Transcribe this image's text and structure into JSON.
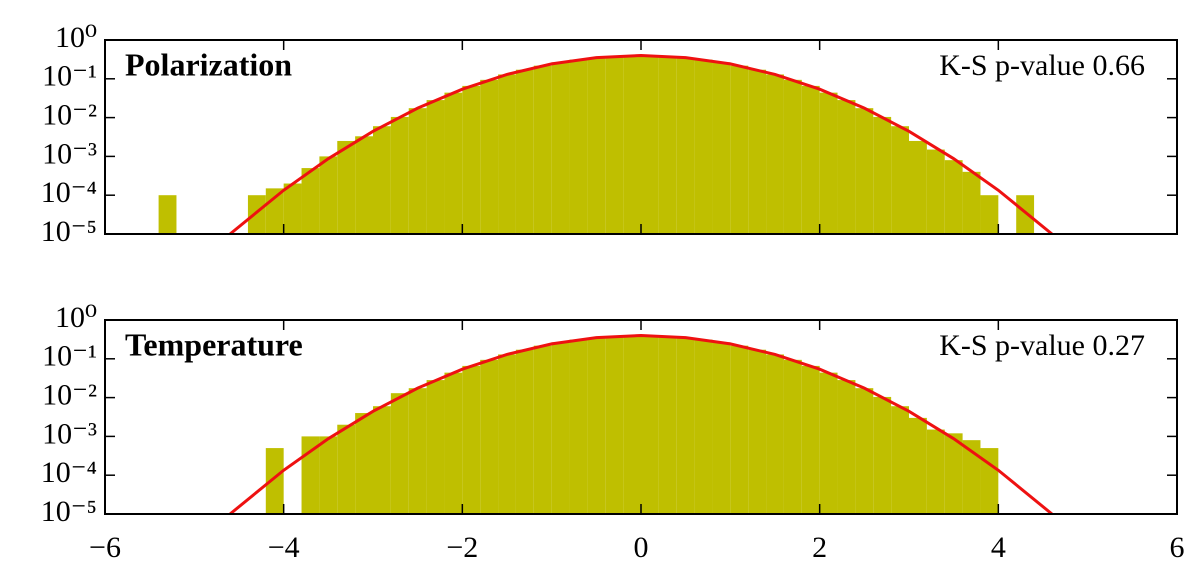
{
  "chart_data": [
    {
      "type": "histogram",
      "title": "Polarization",
      "annotation": "K-S p-value 0.66",
      "color": "#bfbf00",
      "log_y": true,
      "show_xtick_labels": false,
      "bins": [
        -5.4,
        -5.2,
        -5.0,
        -4.8,
        -4.6,
        -4.4,
        -4.2,
        -4.0,
        -3.8,
        -3.6,
        -3.4,
        -3.2,
        -3.0,
        -2.8,
        -2.6,
        -2.4,
        -2.2,
        -2.0,
        -1.8,
        -1.6,
        -1.4,
        -1.2,
        -1.0,
        -0.8,
        -0.6,
        -0.4,
        -0.2,
        0,
        0.2,
        0.4,
        0.6,
        0.8,
        1.0,
        1.2,
        1.4,
        1.6,
        1.8,
        2.0,
        2.2,
        2.4,
        2.6,
        2.8,
        3.0,
        3.2,
        3.4,
        3.6,
        3.8,
        4.0,
        4.2,
        4.4,
        4.6
      ],
      "values": [
        0.0001,
        null,
        null,
        null,
        null,
        0.0001,
        0.00015,
        0.0002,
        0.0005,
        0.001,
        0.0025,
        0.0033,
        0.006,
        0.0104,
        0.0175,
        0.0283,
        0.044,
        0.0656,
        0.094,
        0.1295,
        0.1714,
        0.2179,
        0.2661,
        0.3123,
        0.3521,
        0.3814,
        0.397,
        0.397,
        0.3814,
        0.3521,
        0.3123,
        0.2661,
        0.2179,
        0.1714,
        0.1295,
        0.094,
        0.0656,
        0.044,
        0.0283,
        0.0175,
        0.0104,
        0.006,
        0.0025,
        0.0015,
        0.0008,
        0.0004,
        0.0001,
        null,
        0.0001,
        null
      ],
      "fit": {
        "color": "#ee1111",
        "x": [
          -4.6,
          -4,
          -3.5,
          -3,
          -2.5,
          -2,
          -1.5,
          -1,
          -0.5,
          0,
          0.5,
          1,
          1.5,
          2,
          2.5,
          3,
          3.5,
          4,
          4.6
        ],
        "values": [
          1e-05,
          0.000134,
          0.000873,
          0.00443,
          0.0175,
          0.054,
          0.1295,
          0.242,
          0.352,
          0.399,
          0.352,
          0.242,
          0.1295,
          0.054,
          0.0175,
          0.00443,
          0.000873,
          0.000134,
          1e-05
        ]
      },
      "xlim": [
        -6,
        6
      ],
      "xticks": [
        -6,
        -4,
        -2,
        0,
        2,
        4,
        6
      ],
      "ylim": [
        1e-05,
        1
      ],
      "yticks": [
        {
          "value": 1e-05,
          "label": "10⁻⁵"
        },
        {
          "value": 0.0001,
          "label": "10⁻⁴"
        },
        {
          "value": 0.001,
          "label": "10⁻³"
        },
        {
          "value": 0.01,
          "label": "10⁻²"
        },
        {
          "value": 0.1,
          "label": "10⁻¹"
        },
        {
          "value": 1,
          "label": "10⁰"
        }
      ]
    },
    {
      "type": "histogram",
      "title": "Temperature",
      "annotation": "K-S p-value 0.27",
      "color": "#bfbf00",
      "log_y": true,
      "show_xtick_labels": true,
      "bins": [
        -5.4,
        -5.2,
        -5.0,
        -4.8,
        -4.6,
        -4.4,
        -4.2,
        -4.0,
        -3.8,
        -3.6,
        -3.4,
        -3.2,
        -3.0,
        -2.8,
        -2.6,
        -2.4,
        -2.2,
        -2.0,
        -1.8,
        -1.6,
        -1.4,
        -1.2,
        -1.0,
        -0.8,
        -0.6,
        -0.4,
        -0.2,
        0,
        0.2,
        0.4,
        0.6,
        0.8,
        1.0,
        1.2,
        1.4,
        1.6,
        1.8,
        2.0,
        2.2,
        2.4,
        2.6,
        2.8,
        3.0,
        3.2,
        3.4,
        3.6,
        3.8,
        4.0,
        4.2,
        4.4,
        4.6
      ],
      "values": [
        null,
        null,
        null,
        null,
        null,
        null,
        0.0005,
        null,
        0.001,
        0.001,
        0.002,
        0.004,
        0.006,
        0.013,
        0.0175,
        0.0283,
        0.044,
        0.0656,
        0.094,
        0.1295,
        0.1714,
        0.2179,
        0.2661,
        0.3123,
        0.3521,
        0.3814,
        0.397,
        0.397,
        0.3814,
        0.3521,
        0.3123,
        0.2661,
        0.2179,
        0.1714,
        0.1295,
        0.094,
        0.0656,
        0.044,
        0.0283,
        0.0175,
        0.0104,
        0.006,
        0.003,
        0.0015,
        0.0012,
        0.0008,
        0.0005,
        null,
        null,
        null
      ],
      "fit": {
        "color": "#ee1111",
        "x": [
          -4.6,
          -4,
          -3.5,
          -3,
          -2.5,
          -2,
          -1.5,
          -1,
          -0.5,
          0,
          0.5,
          1,
          1.5,
          2,
          2.5,
          3,
          3.5,
          4,
          4.6
        ],
        "values": [
          1e-05,
          0.000134,
          0.000873,
          0.00443,
          0.0175,
          0.054,
          0.1295,
          0.242,
          0.352,
          0.399,
          0.352,
          0.242,
          0.1295,
          0.054,
          0.0175,
          0.00443,
          0.000873,
          0.000134,
          1e-05
        ]
      },
      "xlim": [
        -6,
        6
      ],
      "xticks": [
        {
          "value": -6,
          "label": "−6"
        },
        {
          "value": -4,
          "label": "−4"
        },
        {
          "value": -2,
          "label": "−2"
        },
        0,
        2,
        4,
        6
      ],
      "ylim": [
        1e-05,
        1
      ],
      "yticks": [
        {
          "value": 1e-05,
          "label": "10⁻⁵"
        },
        {
          "value": 0.0001,
          "label": "10⁻⁴"
        },
        {
          "value": 0.001,
          "label": "10⁻³"
        },
        {
          "value": 0.01,
          "label": "10⁻²"
        },
        {
          "value": 0.1,
          "label": "10⁻¹"
        },
        {
          "value": 1,
          "label": "10⁰"
        }
      ]
    }
  ]
}
